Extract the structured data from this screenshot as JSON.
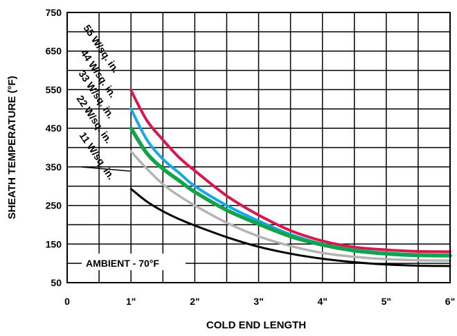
{
  "chart_data": {
    "type": "line",
    "title": "",
    "xlabel": "COLD END LENGTH",
    "ylabel": "SHEATH TEMPERATURE (°F)",
    "xlim": [
      0,
      6
    ],
    "ylim": [
      50,
      750
    ],
    "x_tick_values": [
      0,
      1,
      2,
      3,
      4,
      5,
      6
    ],
    "x_tick_labels": [
      "0",
      "1\"",
      "2\"",
      "3\"",
      "4\"",
      "5\"",
      "6\""
    ],
    "y_tick_values": [
      50,
      150,
      250,
      350,
      450,
      550,
      650,
      750
    ],
    "y_tick_labels": [
      "50",
      "150",
      "250",
      "350",
      "450",
      "550",
      "650",
      "750"
    ],
    "grid": true,
    "annotation": "AMBIENT - 70°F",
    "series": [
      {
        "name": "55 W/sq. in.",
        "color": "#d6194b",
        "x": [
          1,
          1.25,
          1.5,
          1.75,
          2,
          2.5,
          3,
          3.5,
          4,
          4.5,
          5,
          5.5,
          6
        ],
        "y": [
          548,
          470,
          420,
          375,
          340,
          275,
          225,
          185,
          158,
          142,
          135,
          131,
          130
        ]
      },
      {
        "name": "44 W/sq. in.",
        "color": "#1aa7e6",
        "x": [
          1,
          1.25,
          1.5,
          1.75,
          2,
          2.5,
          3,
          3.5,
          4,
          4.5,
          5,
          5.5,
          6
        ],
        "y": [
          500,
          420,
          370,
          335,
          300,
          250,
          210,
          175,
          150,
          135,
          127,
          123,
          122
        ]
      },
      {
        "name": "33 W/sq. in.",
        "color": "#14a24a",
        "x": [
          1,
          1.25,
          1.5,
          1.75,
          2,
          2.5,
          3,
          3.5,
          4,
          4.5,
          5,
          5.5,
          6
        ],
        "y": [
          450,
          385,
          345,
          315,
          285,
          238,
          202,
          170,
          148,
          133,
          125,
          121,
          120
        ]
      },
      {
        "name": "22 W/sq. in.",
        "color": "#b3b3b3",
        "x": [
          1,
          1.25,
          1.5,
          1.75,
          2,
          2.5,
          3,
          3.5,
          4,
          4.5,
          5,
          5.5,
          6
        ],
        "y": [
          390,
          345,
          305,
          275,
          250,
          205,
          170,
          145,
          127,
          117,
          111,
          108,
          107
        ]
      },
      {
        "name": "11 W/sq. in.",
        "color": "#000000",
        "x": [
          1,
          1.25,
          1.5,
          1.75,
          2,
          2.5,
          3,
          3.5,
          4,
          4.5,
          5,
          5.5,
          6
        ],
        "y": [
          293,
          260,
          235,
          215,
          198,
          168,
          143,
          125,
          112,
          103,
          97,
          94,
          93
        ]
      }
    ]
  }
}
